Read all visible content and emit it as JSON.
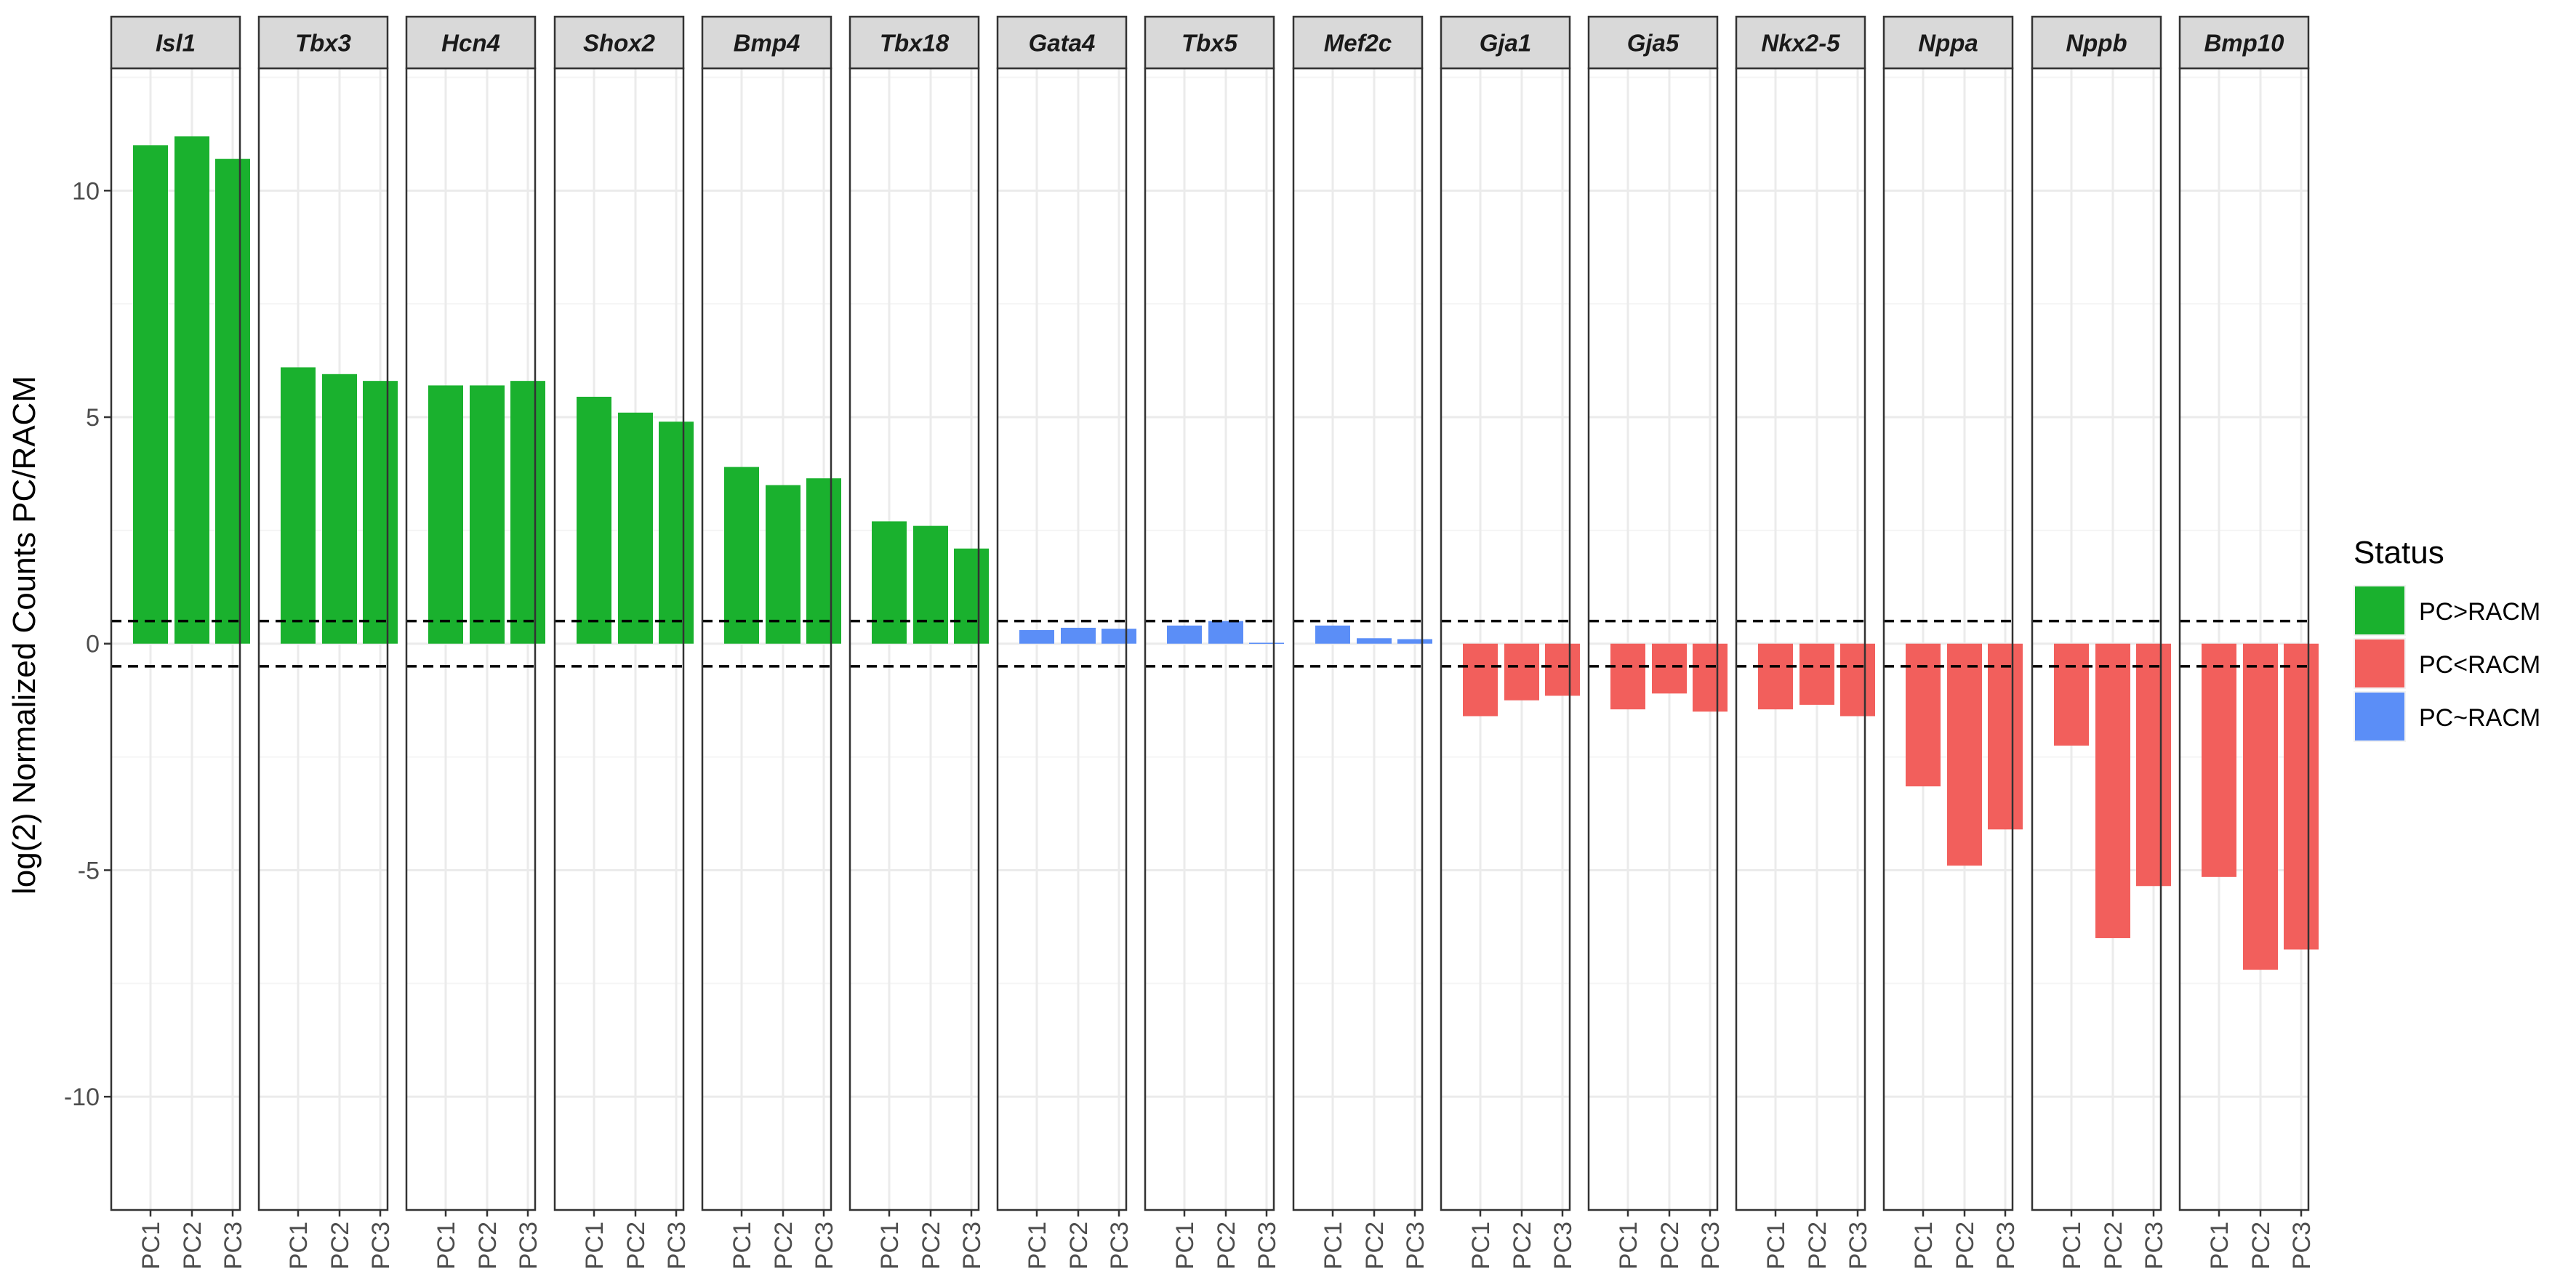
{
  "chart_data": {
    "type": "bar",
    "facet_by": "gene",
    "ylabel": "log(2) Normalized Counts PC/RACM",
    "ylim": [
      -12.5,
      12.7
    ],
    "yticks": [
      10,
      5,
      0,
      -5,
      -10
    ],
    "ytick_labels": [
      "10",
      "5",
      "0",
      "-5",
      "-10"
    ],
    "threshold_lines": [
      0.5,
      -0.5
    ],
    "grid": true,
    "categories": [
      "PC1",
      "PC2",
      "PC3"
    ],
    "legend": {
      "title": "Status",
      "position": "right",
      "items": [
        {
          "label": "PC>RACM",
          "color": "#1ab12e"
        },
        {
          "label": "PC<RACM",
          "color": "#f25f5c"
        },
        {
          "label": "PC~RACM",
          "color": "#5b8ef7"
        }
      ]
    },
    "panels": [
      {
        "gene": "Isl1",
        "values": [
          11.0,
          11.2,
          10.7
        ],
        "status": [
          "PC>RACM",
          "PC>RACM",
          "PC>RACM"
        ]
      },
      {
        "gene": "Tbx3",
        "values": [
          6.1,
          5.95,
          5.8
        ],
        "status": [
          "PC>RACM",
          "PC>RACM",
          "PC>RACM"
        ]
      },
      {
        "gene": "Hcn4",
        "values": [
          5.7,
          5.7,
          5.8
        ],
        "status": [
          "PC>RACM",
          "PC>RACM",
          "PC>RACM"
        ]
      },
      {
        "gene": "Shox2",
        "values": [
          5.45,
          5.1,
          4.9
        ],
        "status": [
          "PC>RACM",
          "PC>RACM",
          "PC>RACM"
        ]
      },
      {
        "gene": "Bmp4",
        "values": [
          3.9,
          3.5,
          3.65
        ],
        "status": [
          "PC>RACM",
          "PC>RACM",
          "PC>RACM"
        ]
      },
      {
        "gene": "Tbx18",
        "values": [
          2.7,
          2.6,
          2.1
        ],
        "status": [
          "PC>RACM",
          "PC>RACM",
          "PC>RACM"
        ]
      },
      {
        "gene": "Gata4",
        "values": [
          0.3,
          0.35,
          0.33
        ],
        "status": [
          "PC~RACM",
          "PC~RACM",
          "PC~RACM"
        ]
      },
      {
        "gene": "Tbx5",
        "values": [
          0.4,
          0.5,
          0.02
        ],
        "status": [
          "PC~RACM",
          "PC~RACM",
          "PC~RACM"
        ]
      },
      {
        "gene": "Mef2c",
        "values": [
          0.4,
          0.12,
          0.1
        ],
        "status": [
          "PC~RACM",
          "PC~RACM",
          "PC~RACM"
        ]
      },
      {
        "gene": "Gja1",
        "values": [
          -1.6,
          -1.25,
          -1.15
        ],
        "status": [
          "PC<RACM",
          "PC<RACM",
          "PC<RACM"
        ]
      },
      {
        "gene": "Gja5",
        "values": [
          -1.45,
          -1.1,
          -1.5
        ],
        "status": [
          "PC<RACM",
          "PC<RACM",
          "PC<RACM"
        ]
      },
      {
        "gene": "Nkx2-5",
        "values": [
          -1.45,
          -1.35,
          -1.6
        ],
        "status": [
          "PC<RACM",
          "PC<RACM",
          "PC<RACM"
        ]
      },
      {
        "gene": "Nppa",
        "values": [
          -3.15,
          -4.9,
          -4.1
        ],
        "status": [
          "PC<RACM",
          "PC<RACM",
          "PC<RACM"
        ]
      },
      {
        "gene": "Nppb",
        "values": [
          -2.25,
          -6.5,
          -5.35
        ],
        "status": [
          "PC<RACM",
          "PC<RACM",
          "PC<RACM"
        ]
      },
      {
        "gene": "Bmp10",
        "values": [
          -5.15,
          -7.2,
          -6.75
        ],
        "status": [
          "PC<RACM",
          "PC<RACM",
          "PC<RACM"
        ]
      }
    ]
  },
  "colors": {
    "panel_border": "#333333",
    "strip_fill": "#d9d9d9",
    "grid_major": "#ebebeb",
    "grid_minor": "#f5f5f5",
    "threshold": "#000000"
  }
}
